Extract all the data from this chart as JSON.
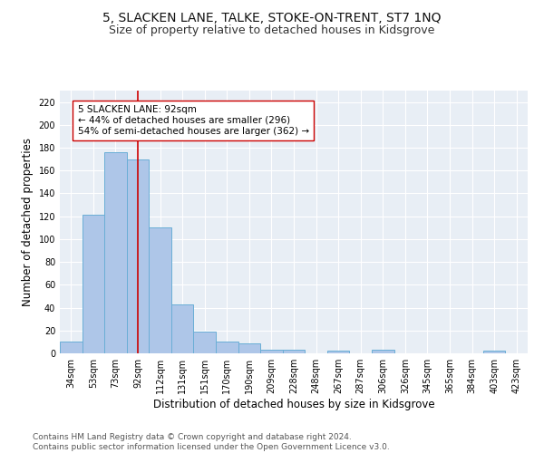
{
  "title": "5, SLACKEN LANE, TALKE, STOKE-ON-TRENT, ST7 1NQ",
  "subtitle": "Size of property relative to detached houses in Kidsgrove",
  "xlabel": "Distribution of detached houses by size in Kidsgrove",
  "ylabel": "Number of detached properties",
  "categories": [
    "34sqm",
    "53sqm",
    "73sqm",
    "92sqm",
    "112sqm",
    "131sqm",
    "151sqm",
    "170sqm",
    "190sqm",
    "209sqm",
    "228sqm",
    "248sqm",
    "267sqm",
    "287sqm",
    "306sqm",
    "326sqm",
    "345sqm",
    "365sqm",
    "384sqm",
    "403sqm",
    "423sqm"
  ],
  "values": [
    10,
    121,
    176,
    170,
    110,
    43,
    19,
    10,
    9,
    3,
    3,
    0,
    2,
    0,
    3,
    0,
    0,
    0,
    0,
    2,
    0
  ],
  "bar_color": "#aec6e8",
  "bar_edge_color": "#6aaed6",
  "highlight_index": 3,
  "highlight_line_color": "#cc0000",
  "annotation_line1": "5 SLACKEN LANE: 92sqm",
  "annotation_line2": "← 44% of detached houses are smaller (296)",
  "annotation_line3": "54% of semi-detached houses are larger (362) →",
  "annotation_box_color": "#ffffff",
  "annotation_box_edge": "#cc0000",
  "ylim": [
    0,
    230
  ],
  "yticks": [
    0,
    20,
    40,
    60,
    80,
    100,
    120,
    140,
    160,
    180,
    200,
    220
  ],
  "background_color": "#e8eef5",
  "footer_line1": "Contains HM Land Registry data © Crown copyright and database right 2024.",
  "footer_line2": "Contains public sector information licensed under the Open Government Licence v3.0.",
  "title_fontsize": 10,
  "subtitle_fontsize": 9,
  "xlabel_fontsize": 8.5,
  "ylabel_fontsize": 8.5,
  "tick_fontsize": 7,
  "annotation_fontsize": 7.5,
  "footer_fontsize": 6.5
}
